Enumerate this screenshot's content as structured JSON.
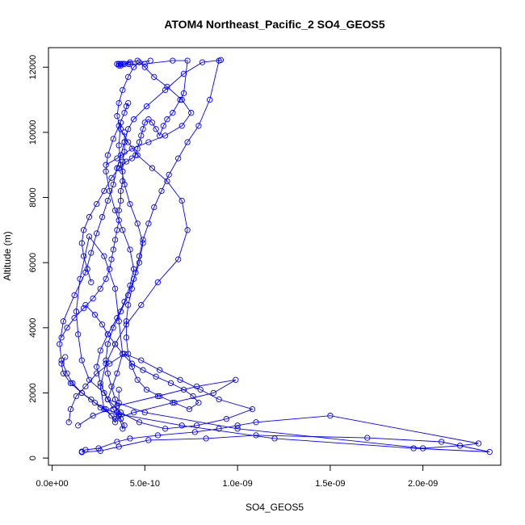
{
  "chart_data": {
    "type": "line",
    "title": "ATOM4 Northeast_Pacific_2 SO4_GEOS5",
    "xlabel": "SO4_GEOS5",
    "ylabel": "Altitude (m)",
    "xlim": [
      -2e-11,
      2.42e-09
    ],
    "ylim": [
      -220,
      12600
    ],
    "x_ticks": [
      0,
      5e-10,
      1e-09,
      1.5e-09,
      2e-09
    ],
    "x_tick_labels": [
      "0.0e+00",
      "5.0e-10",
      "1.0e-09",
      "1.5e-09",
      "2.0e-09"
    ],
    "y_ticks": [
      0,
      2000,
      4000,
      6000,
      8000,
      10000,
      12000
    ],
    "y_tick_labels": [
      "0",
      "2000",
      "4000",
      "6000",
      "8000",
      "10000",
      "12000"
    ],
    "grid": false,
    "legend": "none",
    "marker": "open-circle",
    "color": "#0000ff",
    "series": [
      {
        "x": [
          1.6e-10,
          1.8e-10,
          2.5e-10,
          3.5e-10,
          4.2e-10,
          5.7e-10,
          7.7e-10,
          9e-10,
          1e-09,
          1.1e-09,
          1.5e-09,
          2.3e-09,
          2.2e-09,
          2e-09,
          1e-09,
          5e-10,
          3e-10,
          3.5e-10,
          3.8e-10,
          3.6e-10,
          3.4e-10,
          2.8e-10,
          2e-10,
          1.5e-10,
          1.3e-10,
          1.4e-10,
          1.6e-10,
          2e-10,
          2.8e-10,
          3.3e-10,
          3.7e-10,
          3.9e-10,
          3.8e-10,
          3.6e-10,
          3.6e-10,
          3.6e-10
        ],
        "y": [
          200,
          250,
          300,
          500,
          600,
          700,
          800,
          900,
          1000,
          1100,
          1300,
          450,
          380,
          300,
          900,
          1400,
          1800,
          2600,
          3200,
          4200,
          5200,
          6200,
          6800,
          5500,
          4500,
          3800,
          3000,
          2400,
          2000,
          1500,
          1200,
          1000,
          900,
          1300,
          1700,
          2100
        ]
      },
      {
        "x": [
          1.6e-10,
          2.6e-10,
          3.6e-10,
          5.2e-10,
          8.3e-10,
          1.1e-09,
          1.7e-09,
          2.1e-09,
          2.36e-09,
          1.95e-09,
          1.2e-09,
          7e-10,
          3.6e-10,
          2.6e-10,
          2.1e-10,
          1.6e-10,
          1.1e-10,
          8e-11,
          5e-11,
          4e-11,
          6e-11,
          1.2e-10,
          1.8e-10,
          2.1e-10,
          2.4e-10,
          2.7e-10,
          3e-10,
          3.3e-10,
          3.5e-10,
          3.7e-10,
          3.9e-10,
          4.1e-10,
          4.4e-10,
          5.1e-10,
          6.1e-10,
          7.1e-10,
          8.1e-10,
          9.1e-10
        ],
        "y": [
          180,
          220,
          350,
          550,
          600,
          700,
          620,
          500,
          190,
          300,
          600,
          1000,
          1350,
          1550,
          1800,
          2000,
          2300,
          2600,
          3000,
          3500,
          4200,
          5000,
          5700,
          6300,
          6900,
          7400,
          7900,
          8400,
          8900,
          9300,
          9700,
          10100,
          10400,
          10800,
          11300,
          11800,
          12150,
          12220
        ]
      },
      {
        "x": [
          1.4e-10,
          2.2e-10,
          3.5e-10,
          5.7e-10,
          7.8e-10,
          9.9e-10,
          8.7e-10,
          6.5e-10,
          4.4e-10,
          3.4e-10,
          2.8e-10,
          2.6e-10,
          2.9e-10,
          3.4e-10,
          4e-10,
          4.8e-10,
          5.7e-10,
          6.8e-10,
          7.3e-10,
          7e-10,
          6.2e-10,
          5.4e-10,
          4.6e-10,
          4.1e-10,
          3.7e-10,
          3.5e-10,
          3.6e-10,
          3.8e-10,
          4.1e-10,
          4.4e-10,
          4.7e-10,
          5.3e-10
        ],
        "y": [
          1000,
          1300,
          1600,
          1900,
          2200,
          2400,
          2000,
          1700,
          1400,
          1200,
          1500,
          2200,
          2900,
          3500,
          4100,
          4700,
          5400,
          6100,
          7000,
          7900,
          8500,
          8900,
          9300,
          9700,
          10100,
          10500,
          10900,
          11300,
          11700,
          12000,
          12150,
          12200
        ]
      },
      {
        "x": [
          9e-11,
          1e-10,
          1.3e-10,
          1.8e-10,
          2.4e-10,
          3.1e-10,
          3.9e-10,
          4.8e-10,
          5.8e-10,
          6.9e-10,
          8e-10,
          9e-10,
          1.08e-09,
          9.4e-10,
          7.8e-10,
          6.1e-10,
          4.7e-10,
          3.7e-10,
          3e-10,
          2.6e-10,
          2.4e-10,
          2.6e-10,
          3e-10,
          3.5e-10,
          3.9e-10,
          4.2e-10,
          4.4e-10,
          4.2e-10,
          3.8e-10,
          3.4e-10,
          3.1e-10,
          2.9e-10,
          3e-10,
          3.3e-10,
          3.6e-10,
          3.9e-10,
          4.1e-10,
          4e-10
        ],
        "y": [
          1100,
          1500,
          1900,
          2200,
          2600,
          2900,
          3200,
          3000,
          2700,
          2400,
          2100,
          1800,
          1500,
          1200,
          1000,
          900,
          1100,
          1400,
          1800,
          2300,
          2800,
          3300,
          3800,
          4300,
          4800,
          5300,
          5800,
          6400,
          7000,
          7600,
          8200,
          8800,
          9300,
          9800,
          10200,
          10600,
          10900,
          10800
        ]
      },
      {
        "x": [
          7e-11,
          5e-11,
          6e-11,
          1e-10,
          1.6e-10,
          2.3e-10,
          2.9e-10,
          3.2e-10,
          3.4e-10,
          3.5e-10,
          3.4e-10,
          3.2e-10,
          3e-10,
          2.9e-10,
          3e-10,
          3.3e-10,
          3.7e-10,
          4.1e-10,
          4.4e-10,
          4.7e-10,
          4.9e-10,
          4.6e-10,
          4.2e-10,
          3.9e-10,
          3.7e-10,
          3.6e-10,
          3.7e-10
        ],
        "y": [
          3100,
          2900,
          2600,
          2300,
          2000,
          1700,
          1500,
          1300,
          1100,
          1400,
          1800,
          2200,
          2600,
          3000,
          3500,
          4000,
          4500,
          5000,
          5500,
          6000,
          6600,
          7200,
          7800,
          8400,
          9000,
          9600,
          10300
        ]
      },
      {
        "x": [
          1.8e-10,
          2.3e-10,
          2.7e-10,
          3e-10,
          3.4e-10,
          3.8e-10,
          4.3e-10,
          4.9e-10,
          5.6e-10,
          6.4e-10,
          7.1e-10,
          7.6e-10,
          7.9e-10,
          7.4e-10,
          6.6e-10,
          5.8e-10,
          5.1e-10,
          4.6e-10,
          4.3e-10,
          4.1e-10,
          4e-10,
          4e-10,
          4.1e-10,
          4.3e-10,
          4.5e-10,
          4.7e-10,
          4.9e-10,
          5.2e-10,
          5.5e-10,
          5.9e-10,
          6.3e-10,
          6.8e-10,
          7.3e-10,
          7.9e-10,
          8.5e-10,
          9e-10
        ],
        "y": [
          4700,
          4400,
          4100,
          3800,
          3500,
          3200,
          2900,
          2700,
          2500,
          2300,
          2100,
          1900,
          1700,
          1500,
          1700,
          1900,
          2100,
          2400,
          2800,
          3200,
          3700,
          4200,
          4700,
          5200,
          5700,
          6200,
          6700,
          7200,
          7700,
          8200,
          8700,
          9200,
          9700,
          10200,
          11000,
          12200
        ]
      },
      {
        "x": [
          5e-11,
          8e-11,
          1.2e-10,
          1.7e-10,
          2.2e-10,
          2.6e-10,
          2.9e-10,
          3.1e-10,
          3.2e-10,
          3.3e-10,
          3.4e-10,
          3.5e-10,
          3.6e-10,
          3.6e-10,
          3.7e-10,
          3.7e-10,
          3.8e-10,
          3.8e-10,
          3.8e-10,
          3.9e-10,
          3.9e-10,
          3.9e-10
        ],
        "y": [
          3700,
          4000,
          4300,
          4600,
          4900,
          5200,
          5500,
          5800,
          6100,
          6400,
          6700,
          7000,
          7300,
          7600,
          7900,
          8200,
          8500,
          8800,
          9100,
          9400,
          9700,
          10000
        ]
      },
      {
        "x": [
          2.1e-10,
          1.9e-10,
          1.7e-10,
          1.6e-10,
          1.7e-10,
          2e-10,
          2.4e-10,
          2.8e-10,
          3.2e-10,
          3.6e-10,
          4e-10,
          4.3e-10,
          4.5e-10,
          4.6e-10,
          4.7e-10,
          4.8e-10,
          4.9e-10,
          5e-10,
          5.2e-10,
          5.4e-10,
          5.6e-10,
          5.8e-10,
          6e-10,
          6.2e-10,
          6.5e-10,
          6.9e-10,
          7.1e-10,
          7.3e-10,
          6.5e-10,
          5e-10,
          4.2e-10,
          3.8e-10,
          3.7e-10,
          3.6e-10,
          3.5e-10
        ],
        "y": [
          5400,
          5800,
          6200,
          6600,
          7000,
          7400,
          7800,
          8200,
          8600,
          8900,
          9100,
          9200,
          9300,
          9500,
          9700,
          9900,
          10100,
          10300,
          10400,
          10300,
          10100,
          9900,
          10200,
          10400,
          10600,
          11000,
          11200,
          12200,
          12200,
          12100,
          12100,
          12100,
          12100,
          12100,
          12100
        ]
      },
      {
        "x": [
          2.9e-10,
          3.5e-10,
          4.3e-10,
          5.2e-10,
          6.1e-10,
          7e-10,
          7.5e-10,
          7e-10,
          6.2e-10,
          5.5e-10,
          5e-10,
          4.6e-10,
          4.2e-10,
          3.9e-10,
          3.7e-10,
          3.6e-10,
          3.6e-10,
          3.7e-10,
          3.9e-10,
          4.1e-10
        ],
        "y": [
          9000,
          9200,
          9500,
          9700,
          9900,
          10200,
          10600,
          11000,
          11400,
          11700,
          12000,
          12200,
          12150,
          12100,
          12050,
          12050,
          12100,
          12100,
          12100,
          12100
        ]
      }
    ]
  }
}
